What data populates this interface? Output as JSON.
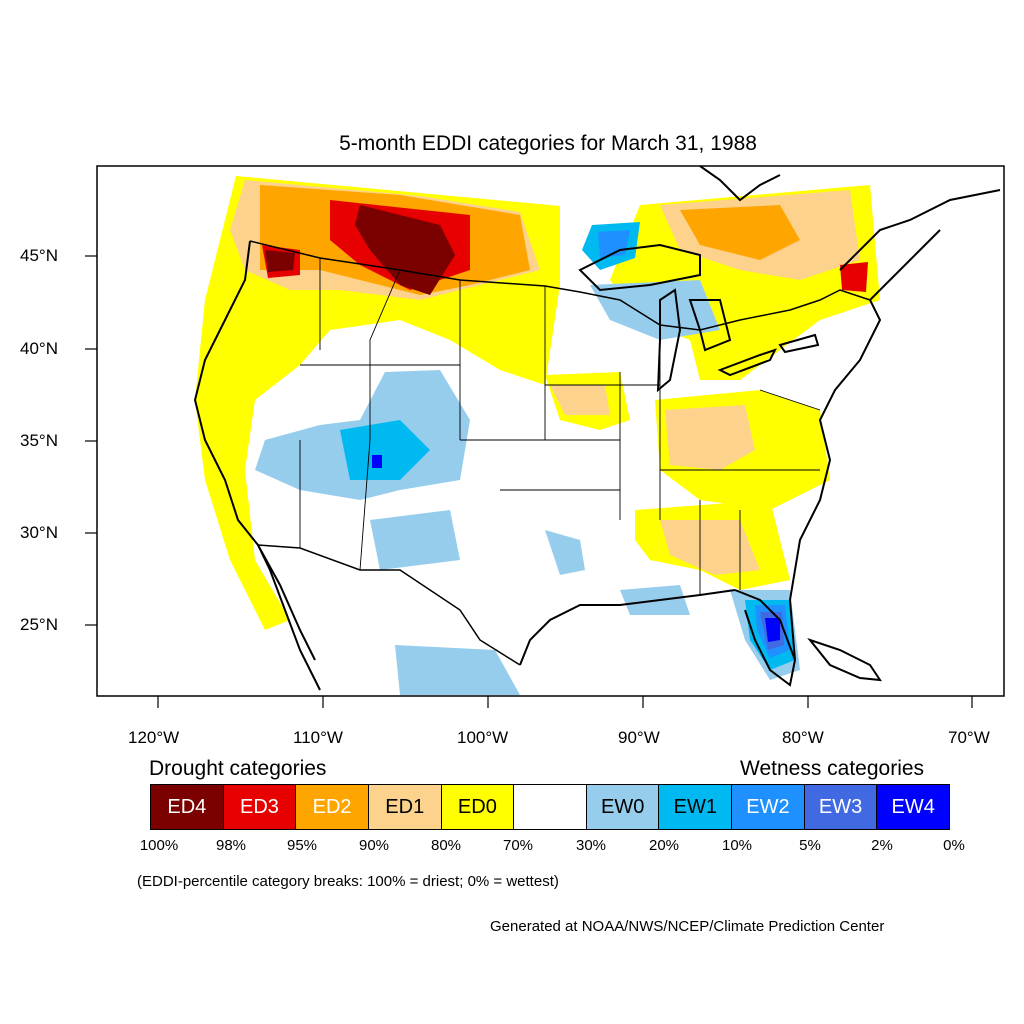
{
  "title": "5-month EDDI categories for March 31, 1988",
  "latitude_labels": [
    "45°N",
    "40°N",
    "35°N",
    "30°N",
    "25°N"
  ],
  "longitude_labels": [
    "120°W",
    "110°W",
    "100°W",
    "90°W",
    "80°W",
    "70°W"
  ],
  "legend": {
    "drought_heading": "Drought categories",
    "wetness_heading": "Wetness categories",
    "categories": [
      {
        "label": "ED4",
        "color": "#7b0000",
        "text_color": "#ffffff"
      },
      {
        "label": "ED3",
        "color": "#e60000",
        "text_color": "#ffffff"
      },
      {
        "label": "ED2",
        "color": "#ffa500",
        "text_color": "#ffffff"
      },
      {
        "label": "ED1",
        "color": "#fcd28c",
        "text_color": "#000000"
      },
      {
        "label": "ED0",
        "color": "#ffff00",
        "text_color": "#000000"
      },
      {
        "label": "",
        "color": "#ffffff",
        "text_color": "#000000"
      },
      {
        "label": "EW0",
        "color": "#96cdec",
        "text_color": "#000000"
      },
      {
        "label": "EW1",
        "color": "#00b9f0",
        "text_color": "#000000"
      },
      {
        "label": "EW2",
        "color": "#1e90ff",
        "text_color": "#ffffff"
      },
      {
        "label": "EW3",
        "color": "#4169e1",
        "text_color": "#ffffff"
      },
      {
        "label": "EW4",
        "color": "#0000ff",
        "text_color": "#ffffff"
      }
    ],
    "percentiles": [
      "100%",
      "98%",
      "95%",
      "90%",
      "80%",
      "70%",
      "30%",
      "20%",
      "10%",
      "5%",
      "2%",
      "0%"
    ]
  },
  "note": "(EDDI-percentile category breaks: 100% = driest; 0% = wettest)",
  "credit": "Generated at NOAA/NWS/NCEP/Climate Prediction Center"
}
